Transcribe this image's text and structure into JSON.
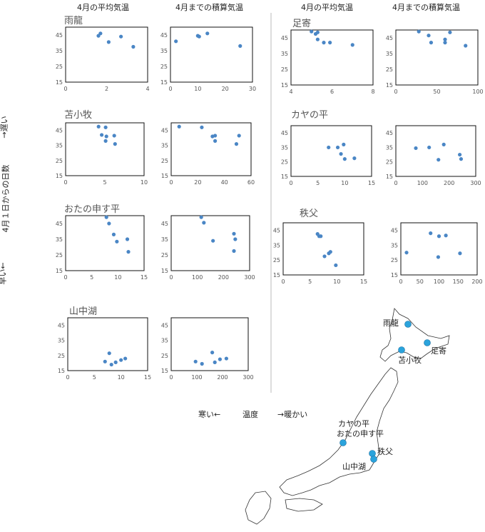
{
  "headers": {
    "avg_temp": "4月の平均気温",
    "cum_temp": "4月までの積算気温"
  },
  "y_axis_label": {
    "early": "早い←",
    "middle": "4月１日からの日数",
    "late": "→遅い"
  },
  "x_axis_label": {
    "cold": "寒い←",
    "temperature": "温度",
    "warm": "→暖かい"
  },
  "chart_data": [
    {
      "type": "scatter",
      "site": "雨龍",
      "metric": "4月の平均気温",
      "xlim": [
        0,
        4
      ],
      "xticks": [
        0,
        2,
        4
      ],
      "ylim": [
        15,
        50
      ],
      "yticks": [
        15,
        25,
        35,
        45
      ],
      "points": [
        [
          1.6,
          44.5
        ],
        [
          1.7,
          46
        ],
        [
          2.1,
          40.5
        ],
        [
          2.7,
          44
        ],
        [
          3.3,
          37.5
        ]
      ]
    },
    {
      "type": "scatter",
      "site": "雨龍",
      "metric": "4月までの積算気温",
      "xlim": [
        0,
        30
      ],
      "xticks": [
        0,
        10,
        20,
        30
      ],
      "ylim": [
        15,
        50
      ],
      "yticks": [
        15,
        25,
        35,
        45
      ],
      "points": [
        [
          2,
          41
        ],
        [
          10,
          44.5
        ],
        [
          10.5,
          44
        ],
        [
          13.5,
          46
        ],
        [
          25.5,
          38
        ]
      ]
    },
    {
      "type": "scatter",
      "site": "足寄",
      "metric": "4月の平均気温",
      "xlim": [
        4,
        8
      ],
      "xticks": [
        4,
        6,
        8
      ],
      "ylim": [
        15,
        50
      ],
      "yticks": [
        15,
        25,
        35,
        45
      ],
      "points": [
        [
          5,
          49
        ],
        [
          5.2,
          47.5
        ],
        [
          5.3,
          48.5
        ],
        [
          5.3,
          44
        ],
        [
          5.6,
          42
        ],
        [
          5.9,
          42
        ],
        [
          7,
          40.5
        ]
      ]
    },
    {
      "type": "scatter",
      "site": "足寄",
      "metric": "4月までの積算気温",
      "xlim": [
        0,
        100
      ],
      "xticks": [
        0,
        50,
        100
      ],
      "ylim": [
        15,
        50
      ],
      "yticks": [
        15,
        25,
        35,
        45
      ],
      "points": [
        [
          28,
          49
        ],
        [
          40,
          46.5
        ],
        [
          43,
          42
        ],
        [
          60,
          44
        ],
        [
          60,
          42
        ],
        [
          66,
          48.5
        ],
        [
          85,
          40
        ]
      ]
    },
    {
      "type": "scatter",
      "site": "苫小牧",
      "metric": "4月の平均気温",
      "xlim": [
        0,
        10
      ],
      "xticks": [
        0,
        5,
        10
      ],
      "ylim": [
        15,
        50
      ],
      "yticks": [
        15,
        25,
        35,
        45
      ],
      "points": [
        [
          4.2,
          47.5
        ],
        [
          4.6,
          42
        ],
        [
          5.1,
          47
        ],
        [
          5.1,
          38
        ],
        [
          5.2,
          41
        ],
        [
          6.2,
          41.5
        ],
        [
          6.3,
          36
        ]
      ]
    },
    {
      "type": "scatter",
      "site": "苫小牧",
      "metric": "4月までの積算気温",
      "xlim": [
        0,
        60
      ],
      "xticks": [
        0,
        20,
        40,
        60
      ],
      "ylim": [
        15,
        50
      ],
      "yticks": [
        15,
        25,
        35,
        45
      ],
      "points": [
        [
          6,
          47.5
        ],
        [
          23,
          47
        ],
        [
          31,
          41
        ],
        [
          33,
          41.5
        ],
        [
          33,
          38
        ],
        [
          49,
          36
        ],
        [
          51,
          41.5
        ]
      ]
    },
    {
      "type": "scatter",
      "site": "カヤの平",
      "metric": "4月の平均気温",
      "xlim": [
        0,
        15
      ],
      "xticks": [
        0,
        5,
        10,
        15
      ],
      "ylim": [
        15,
        50
      ],
      "yticks": [
        15,
        25,
        35,
        45
      ],
      "points": [
        [
          7,
          35
        ],
        [
          8.7,
          35
        ],
        [
          9.3,
          30.5
        ],
        [
          9.8,
          37
        ],
        [
          10,
          27
        ],
        [
          11.8,
          27.5
        ]
      ]
    },
    {
      "type": "scatter",
      "site": "カヤの平",
      "metric": "4月までの積算気温",
      "xlim": [
        0,
        300
      ],
      "xticks": [
        0,
        100,
        200,
        300
      ],
      "ylim": [
        15,
        50
      ],
      "yticks": [
        15,
        25,
        35,
        45
      ],
      "points": [
        [
          75,
          34.5
        ],
        [
          125,
          35
        ],
        [
          160,
          26.5
        ],
        [
          180,
          37
        ],
        [
          240,
          30
        ],
        [
          245,
          27
        ]
      ]
    },
    {
      "type": "scatter",
      "site": "おたの申す平",
      "metric": "4月の平均気温",
      "xlim": [
        0,
        15
      ],
      "xticks": [
        0,
        5,
        10,
        15
      ],
      "ylim": [
        15,
        50
      ],
      "yticks": [
        15,
        25,
        35,
        45
      ],
      "points": [
        [
          7.8,
          49
        ],
        [
          8.3,
          45
        ],
        [
          9.2,
          38
        ],
        [
          9.8,
          33.5
        ],
        [
          11.8,
          35
        ],
        [
          12,
          27
        ]
      ]
    },
    {
      "type": "scatter",
      "site": "おたの申す平",
      "metric": "4月までの積算気温",
      "xlim": [
        0,
        300
      ],
      "xticks": [
        0,
        100,
        200,
        300
      ],
      "ylim": [
        15,
        50
      ],
      "yticks": [
        15,
        25,
        35,
        45
      ],
      "points": [
        [
          115,
          49
        ],
        [
          125,
          45.5
        ],
        [
          160,
          34
        ],
        [
          240,
          38.5
        ],
        [
          245,
          35
        ],
        [
          240,
          27.5
        ]
      ]
    },
    {
      "type": "scatter",
      "site": "秩父",
      "metric": "4月の平均気温",
      "xlim": [
        0,
        15
      ],
      "xticks": [
        0,
        5,
        10,
        15
      ],
      "ylim": [
        15,
        50
      ],
      "yticks": [
        15,
        25,
        35,
        45
      ],
      "points": [
        [
          6.4,
          42.5
        ],
        [
          6.7,
          41
        ],
        [
          7,
          41
        ],
        [
          7.7,
          27.5
        ],
        [
          8.5,
          29.5
        ],
        [
          8.8,
          30.5
        ],
        [
          9.8,
          21.5
        ]
      ]
    },
    {
      "type": "scatter",
      "site": "秩父",
      "metric": "4月までの積算気温",
      "xlim": [
        0,
        200
      ],
      "xticks": [
        0,
        50,
        100,
        150,
        200
      ],
      "ylim": [
        15,
        50
      ],
      "yticks": [
        15,
        25,
        35,
        45
      ],
      "points": [
        [
          15,
          30
        ],
        [
          78,
          43
        ],
        [
          98,
          27
        ],
        [
          100,
          41
        ],
        [
          118,
          41.5
        ],
        [
          155,
          29.5
        ]
      ]
    },
    {
      "type": "scatter",
      "site": "山中湖",
      "metric": "4月の平均気温",
      "xlim": [
        0,
        15
      ],
      "xticks": [
        0,
        5,
        10,
        15
      ],
      "ylim": [
        15,
        50
      ],
      "yticks": [
        15,
        25,
        35,
        45
      ],
      "points": [
        [
          7,
          21
        ],
        [
          7.8,
          26.5
        ],
        [
          8.2,
          19
        ],
        [
          9,
          20.5
        ],
        [
          10,
          22
        ],
        [
          10.8,
          23
        ]
      ]
    },
    {
      "type": "scatter",
      "site": "山中湖",
      "metric": "4月までの積算気温",
      "xlim": [
        0,
        300
      ],
      "xticks": [
        0,
        100,
        200,
        300
      ],
      "ylim": [
        15,
        50
      ],
      "yticks": [
        15,
        25,
        35,
        45
      ],
      "points": [
        [
          95,
          21
        ],
        [
          120,
          19.5
        ],
        [
          160,
          27
        ],
        [
          170,
          20.5
        ],
        [
          190,
          22.5
        ],
        [
          215,
          23
        ]
      ]
    }
  ],
  "map": {
    "labels": {
      "uryu": "雨龍",
      "ashoro": "足寄",
      "tomakomai": "苫小牧",
      "kaya": "カヤの平",
      "otano": "おたの申す平",
      "chichibu": "秩父",
      "yamanaka": "山中湖"
    },
    "marker_color": "#2aa3dc"
  },
  "colors": {
    "point": "#4a86c5",
    "frame": "#111111",
    "divider": "#bbbbbb"
  }
}
